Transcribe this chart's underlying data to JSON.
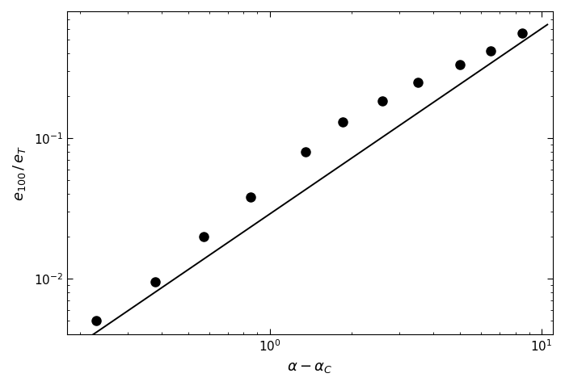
{
  "x_data": [
    0.23,
    0.38,
    0.57,
    0.85,
    1.35,
    1.85,
    2.6,
    3.5,
    5.0,
    6.5,
    8.5
  ],
  "y_data": [
    0.005,
    0.0095,
    0.02,
    0.038,
    0.08,
    0.13,
    0.185,
    0.25,
    0.335,
    0.415,
    0.56
  ],
  "line_x_start": 0.18,
  "line_x_end": 10.5,
  "slope": 1.32,
  "intercept_log": -1.54,
  "xlim": [
    0.18,
    11.0
  ],
  "ylim": [
    0.004,
    0.8
  ],
  "xlabel": "$\\alpha - \\alpha_C$",
  "ylabel": "$e_{100}\\,/\\,e_T$",
  "xlabel_fontsize": 13,
  "ylabel_fontsize": 13,
  "tick_fontsize": 11,
  "marker_size": 8,
  "line_color": "#000000",
  "marker_color": "#000000",
  "background_color": "#ffffff"
}
